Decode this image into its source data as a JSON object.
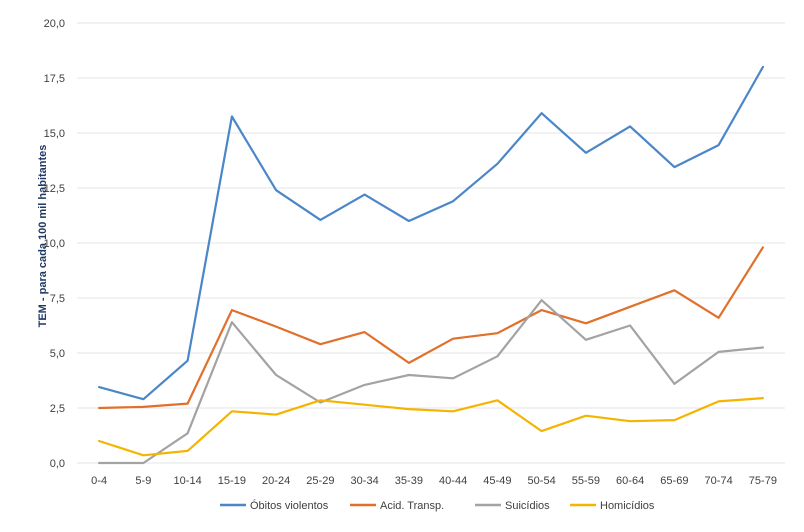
{
  "chart_data": {
    "type": "line",
    "title": "",
    "xlabel": "",
    "ylabel": "TEM - para cada 100 mil habitantes",
    "categories": [
      "0-4",
      "5-9",
      "10-14",
      "15-19",
      "20-24",
      "25-29",
      "30-34",
      "35-39",
      "40-44",
      "45-49",
      "50-54",
      "55-59",
      "60-64",
      "65-69",
      "70-74",
      "75-79"
    ],
    "ylim": [
      0,
      20
    ],
    "yticks": [
      "0,0",
      "2,5",
      "5,0",
      "7,5",
      "10,0",
      "12,5",
      "15,0",
      "17,5",
      "20,0"
    ],
    "grid": true,
    "legend_position": "bottom",
    "series": [
      {
        "name": "Óbitos violentos",
        "color": "#4a86c8",
        "values": [
          3.45,
          2.9,
          4.65,
          15.75,
          12.4,
          11.05,
          12.2,
          11.0,
          11.9,
          13.6,
          15.9,
          14.1,
          15.3,
          13.45,
          14.45,
          18.0
        ]
      },
      {
        "name": "Acid. Transp.",
        "color": "#e0702b",
        "values": [
          2.5,
          2.55,
          2.7,
          6.95,
          6.2,
          5.4,
          5.95,
          4.55,
          5.65,
          5.9,
          6.95,
          6.35,
          7.1,
          7.85,
          6.6,
          9.8
        ]
      },
      {
        "name": "Suicídios",
        "color": "#a3a3a3",
        "values": [
          0.0,
          0.0,
          1.35,
          6.4,
          4.0,
          2.75,
          3.55,
          4.0,
          3.85,
          4.85,
          7.4,
          5.6,
          6.25,
          3.6,
          5.05,
          5.25
        ]
      },
      {
        "name": "Homicídios",
        "color": "#f4b400",
        "values": [
          1.0,
          0.35,
          0.55,
          2.35,
          2.2,
          2.85,
          2.65,
          2.45,
          2.35,
          2.85,
          1.45,
          2.15,
          1.9,
          1.95,
          2.8,
          2.95
        ]
      }
    ]
  }
}
